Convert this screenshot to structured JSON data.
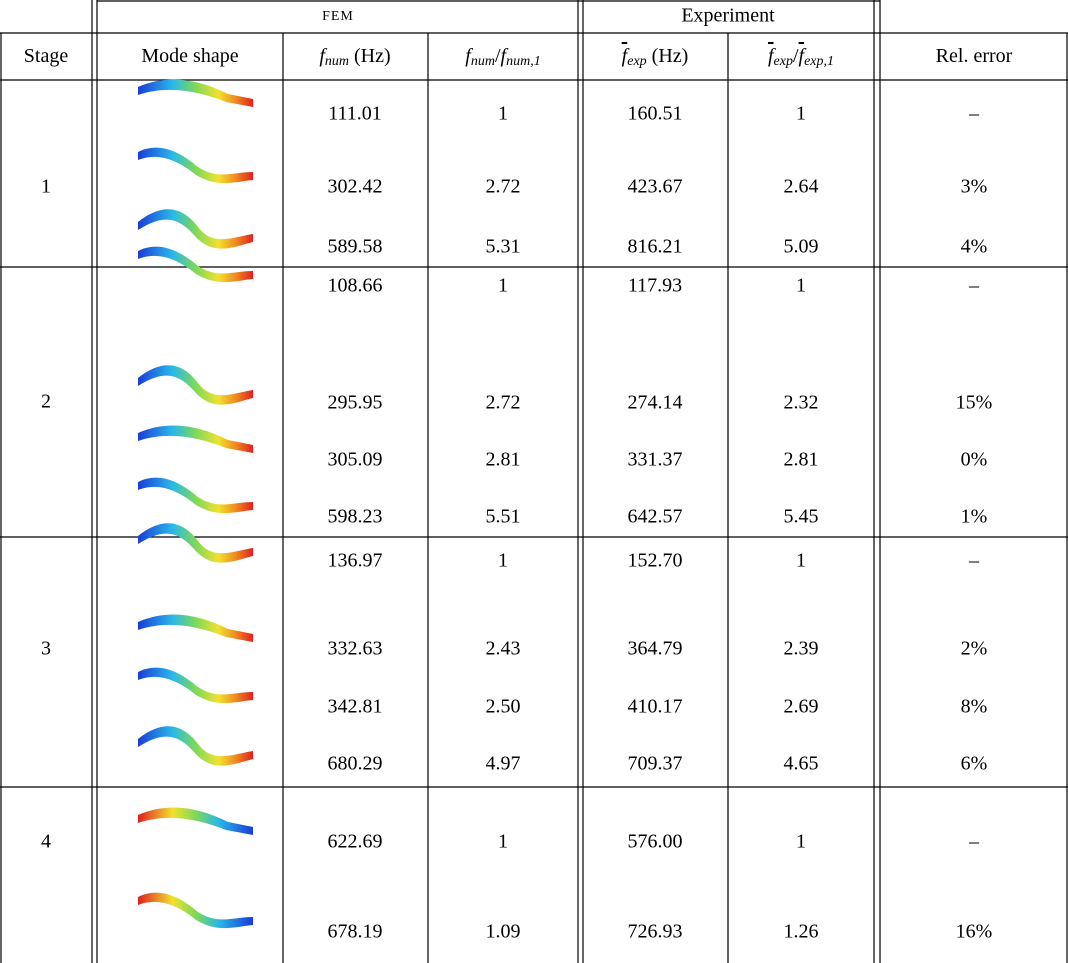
{
  "header_groups": [
    {
      "label": "FEM"
    },
    {
      "label": "Experiment"
    }
  ],
  "columns": [
    {
      "parts": [
        {
          "text": "Stage"
        }
      ]
    },
    {
      "parts": [
        {
          "text": "Mode shape"
        }
      ]
    },
    {
      "parts": [
        {
          "text": "f",
          "style": "var"
        },
        {
          "text": "num",
          "style": "sub"
        },
        {
          "text": " (Hz)"
        }
      ]
    },
    {
      "parts": [
        {
          "text": "f",
          "style": "var"
        },
        {
          "text": "num",
          "style": "sub"
        },
        {
          "text": "/"
        },
        {
          "text": "f",
          "style": "var"
        },
        {
          "text": "num,1",
          "style": "sub"
        }
      ]
    },
    {
      "parts": [
        {
          "text": "f",
          "style": "var-bar"
        },
        {
          "text": "exp",
          "style": "sub"
        },
        {
          "text": " (Hz)"
        }
      ]
    },
    {
      "parts": [
        {
          "text": "f",
          "style": "var-bar"
        },
        {
          "text": "exp",
          "style": "sub"
        },
        {
          "text": "/"
        },
        {
          "text": "f",
          "style": "var-bar"
        },
        {
          "text": "exp,1",
          "style": "sub"
        }
      ]
    },
    {
      "parts": [
        {
          "text": "Rel. error"
        }
      ]
    }
  ],
  "stages": [
    {
      "label": "1",
      "rows": [
        {
          "f_num": "111.01",
          "ratio_num": "1",
          "f_exp": "160.51",
          "ratio_exp": "1",
          "rel_error": "–"
        },
        {
          "f_num": "302.42",
          "ratio_num": "2.72",
          "f_exp": "423.67",
          "ratio_exp": "2.64",
          "rel_error": "3%"
        },
        {
          "f_num": "589.58",
          "ratio_num": "5.31",
          "f_exp": "816.21",
          "ratio_exp": "5.09",
          "rel_error": "4%"
        }
      ]
    },
    {
      "label": "2",
      "rows": [
        {
          "f_num": "108.66",
          "ratio_num": "1",
          "f_exp": "117.93",
          "ratio_exp": "1",
          "rel_error": "–"
        },
        {
          "f_num": "295.95",
          "ratio_num": "2.72",
          "f_exp": "274.14",
          "ratio_exp": "2.32",
          "rel_error": "15%"
        },
        {
          "f_num": "305.09",
          "ratio_num": "2.81",
          "f_exp": "331.37",
          "ratio_exp": "2.81",
          "rel_error": "0%"
        },
        {
          "f_num": "598.23",
          "ratio_num": "5.51",
          "f_exp": "642.57",
          "ratio_exp": "5.45",
          "rel_error": "1%"
        }
      ]
    },
    {
      "label": "3",
      "rows": [
        {
          "f_num": "136.97",
          "ratio_num": "1",
          "f_exp": "152.70",
          "ratio_exp": "1",
          "rel_error": "–"
        },
        {
          "f_num": "332.63",
          "ratio_num": "2.43",
          "f_exp": "364.79",
          "ratio_exp": "2.39",
          "rel_error": "2%"
        },
        {
          "f_num": "342.81",
          "ratio_num": "2.50",
          "f_exp": "410.17",
          "ratio_exp": "2.69",
          "rel_error": "8%"
        },
        {
          "f_num": "680.29",
          "ratio_num": "4.97",
          "f_exp": "709.37",
          "ratio_exp": "4.65",
          "rel_error": "6%"
        }
      ]
    },
    {
      "label": "4",
      "rows": [
        {
          "f_num": "622.69",
          "ratio_num": "1",
          "f_exp": "576.00",
          "ratio_exp": "1",
          "rel_error": "–"
        },
        {
          "f_num": "678.19",
          "ratio_num": "1.09",
          "f_exp": "726.93",
          "ratio_exp": "1.26",
          "rel_error": "16%"
        }
      ]
    }
  ]
}
